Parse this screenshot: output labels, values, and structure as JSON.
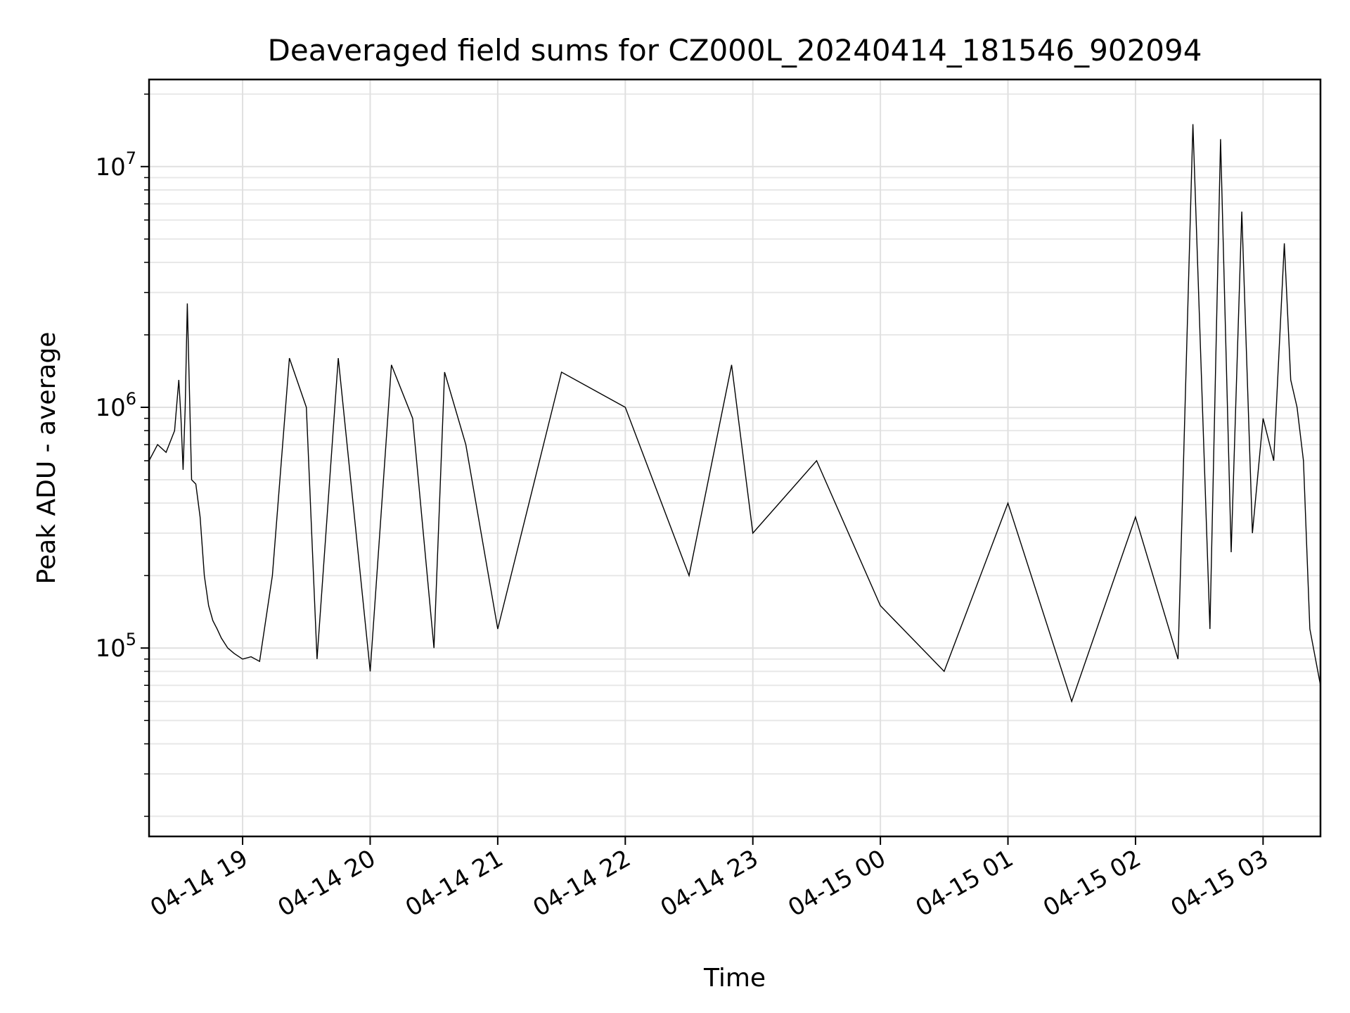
{
  "chart_data": {
    "type": "line",
    "title": "Deaveraged field sums for CZ000L_20240414_181546_902094",
    "xlabel": "Time",
    "ylabel": "Peak ADU - average",
    "yscale": "log",
    "xlim": [
      "2024-04-14T18:16:00",
      "2024-04-15T03:27:00"
    ],
    "ylim": [
      16500,
      23000000
    ],
    "grid": true,
    "legend": "none",
    "line_color": "#000000",
    "x_ticks": [
      {
        "value": "2024-04-14T19:00:00",
        "label": "04-14 19"
      },
      {
        "value": "2024-04-14T20:00:00",
        "label": "04-14 20"
      },
      {
        "value": "2024-04-14T21:00:00",
        "label": "04-14 21"
      },
      {
        "value": "2024-04-14T22:00:00",
        "label": "04-14 22"
      },
      {
        "value": "2024-04-14T23:00:00",
        "label": "04-14 23"
      },
      {
        "value": "2024-04-15T00:00:00",
        "label": "04-15 00"
      },
      {
        "value": "2024-04-15T01:00:00",
        "label": "04-15 01"
      },
      {
        "value": "2024-04-15T02:00:00",
        "label": "04-15 02"
      },
      {
        "value": "2024-04-15T03:00:00",
        "label": "04-15 03"
      }
    ],
    "y_ticks": [
      {
        "value": 100000,
        "base": "10",
        "exp": "5"
      },
      {
        "value": 1000000,
        "base": "10",
        "exp": "6"
      },
      {
        "value": 10000000,
        "base": "10",
        "exp": "7"
      }
    ],
    "series": [
      {
        "x": [
          "2024-04-14T18:16:00",
          "2024-04-14T18:20:00",
          "2024-04-14T18:24:00",
          "2024-04-14T18:28:00",
          "2024-04-14T18:30:00",
          "2024-04-14T18:31:00",
          "2024-04-14T18:32:00",
          "2024-04-14T18:33:00",
          "2024-04-14T18:34:00",
          "2024-04-14T18:36:00",
          "2024-04-14T18:38:00",
          "2024-04-14T18:40:00",
          "2024-04-14T18:42:00",
          "2024-04-14T18:44:00",
          "2024-04-14T18:46:00",
          "2024-04-14T18:48:00",
          "2024-04-14T18:50:00",
          "2024-04-14T18:53:00",
          "2024-04-14T18:56:00",
          "2024-04-14T19:00:00",
          "2024-04-14T19:04:00",
          "2024-04-14T19:08:00",
          "2024-04-14T19:14:00",
          "2024-04-14T19:22:00",
          "2024-04-14T19:30:00",
          "2024-04-14T19:35:00",
          "2024-04-14T19:45:00",
          "2024-04-14T20:00:00",
          "2024-04-14T20:10:00",
          "2024-04-14T20:20:00",
          "2024-04-14T20:30:00",
          "2024-04-14T20:35:00",
          "2024-04-14T20:45:00",
          "2024-04-14T21:00:00",
          "2024-04-14T21:30:00",
          "2024-04-14T22:00:00",
          "2024-04-14T22:30:00",
          "2024-04-14T22:50:00",
          "2024-04-14T23:00:00",
          "2024-04-14T23:30:00",
          "2024-04-15T00:00:00",
          "2024-04-15T00:30:00",
          "2024-04-15T01:00:00",
          "2024-04-15T01:30:00",
          "2024-04-15T02:00:00",
          "2024-04-15T02:20:00",
          "2024-04-15T02:27:00",
          "2024-04-15T02:35:00",
          "2024-04-15T02:40:00",
          "2024-04-15T02:45:00",
          "2024-04-15T02:50:00",
          "2024-04-15T02:55:00",
          "2024-04-15T03:00:00",
          "2024-04-15T03:05:00",
          "2024-04-15T03:10:00",
          "2024-04-15T03:13:00",
          "2024-04-15T03:16:00",
          "2024-04-15T03:19:00",
          "2024-04-15T03:22:00",
          "2024-04-15T03:27:00"
        ],
        "y": [
          600000,
          700000,
          650000,
          800000,
          1300000,
          900000,
          550000,
          1000000,
          2700000,
          500000,
          480000,
          350000,
          200000,
          150000,
          130000,
          120000,
          110000,
          100000,
          95000,
          90000,
          92000,
          88000,
          200000,
          1600000,
          1000000,
          90000,
          1600000,
          80000,
          1500000,
          900000,
          100000,
          1400000,
          700000,
          120000,
          1400000,
          1000000,
          200000,
          1500000,
          300000,
          600000,
          150000,
          80000,
          400000,
          60000,
          350000,
          90000,
          15000000,
          120000,
          13000000,
          250000,
          6500000,
          300000,
          900000,
          600000,
          4800000,
          1300000,
          1000000,
          600000,
          120000,
          70000
        ]
      }
    ]
  }
}
